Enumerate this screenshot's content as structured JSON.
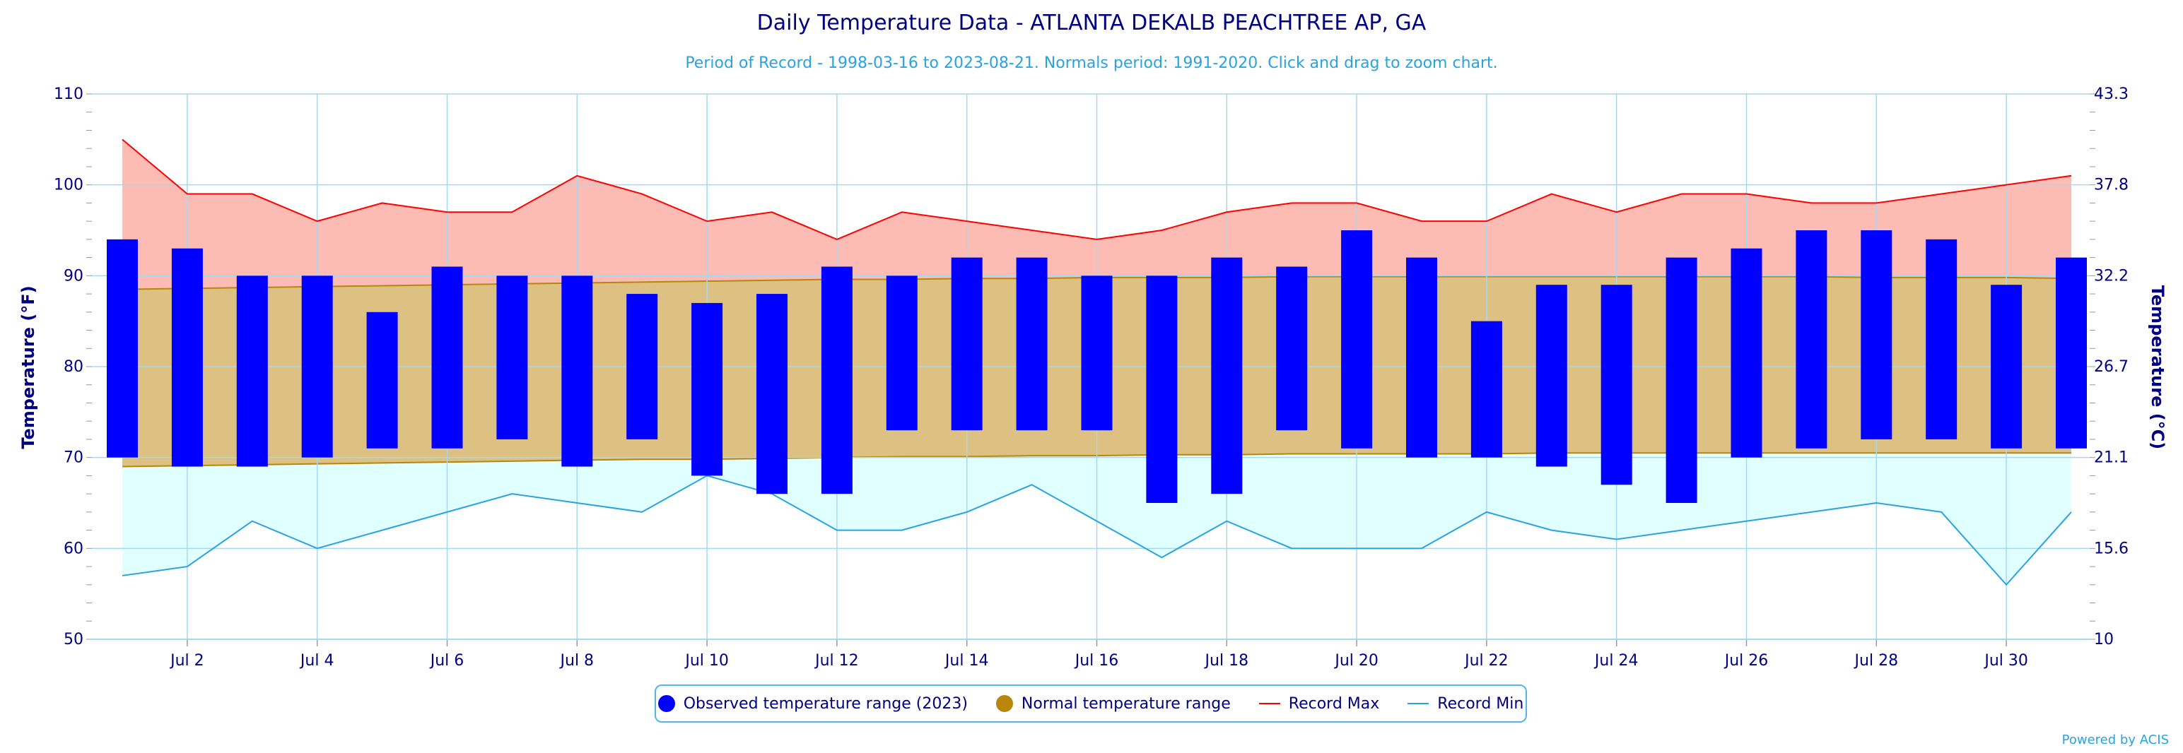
{
  "chart_data": {
    "type": "bar",
    "title": "Daily Temperature Data - ATLANTA DEKALB PEACHTREE AP, GA",
    "subtitle": "Period of Record - 1998-03-16 to 2023-08-21. Normals period: 1991-2020. Click and drag to zoom chart.",
    "ylabel": "Temperature (°F)",
    "y2label": "Temperature (°C)",
    "ylim": [
      50,
      110
    ],
    "y_ticks": [
      "50",
      "60",
      "70",
      "80",
      "90",
      "100",
      "110"
    ],
    "y2_ticks": [
      "10",
      "15.6",
      "21.1",
      "26.7",
      "32.2",
      "37.8",
      "43.3"
    ],
    "x_tick_labels": [
      "Jul 2",
      "Jul 4",
      "Jul 6",
      "Jul 8",
      "Jul 10",
      "Jul 12",
      "Jul 14",
      "Jul 16",
      "Jul 18",
      "Jul 20",
      "Jul 22",
      "Jul 24",
      "Jul 26",
      "Jul 28",
      "Jul 30"
    ],
    "days": [
      1,
      2,
      3,
      4,
      5,
      6,
      7,
      8,
      9,
      10,
      11,
      12,
      13,
      14,
      15,
      16,
      17,
      18,
      19,
      20,
      21,
      22,
      23,
      24,
      25,
      26,
      27,
      28,
      29,
      30,
      31
    ],
    "series": [
      {
        "name": "Observed temperature range (2023)",
        "color": "#0000ff",
        "max": [
          94,
          93,
          90,
          90,
          86,
          91,
          90,
          90,
          88,
          87,
          88,
          91,
          90,
          92,
          92,
          90,
          90,
          92,
          91,
          95,
          92,
          85,
          89,
          89,
          92,
          93,
          95,
          95,
          94,
          89,
          92
        ],
        "min": [
          70,
          69,
          69,
          70,
          71,
          71,
          72,
          69,
          72,
          68,
          66,
          66,
          73,
          73,
          73,
          73,
          65,
          66,
          73,
          71,
          70,
          70,
          69,
          67,
          65,
          70,
          71,
          72,
          72,
          71,
          71
        ]
      },
      {
        "name": "Normal temperature range",
        "color": "#b8860b",
        "max": [
          88.5,
          88.6,
          88.7,
          88.8,
          88.9,
          89.0,
          89.1,
          89.2,
          89.3,
          89.4,
          89.5,
          89.6,
          89.6,
          89.7,
          89.7,
          89.8,
          89.8,
          89.8,
          89.9,
          89.9,
          89.9,
          89.9,
          89.9,
          89.9,
          89.9,
          89.9,
          89.9,
          89.8,
          89.8,
          89.8,
          89.7
        ],
        "min": [
          69.0,
          69.1,
          69.2,
          69.3,
          69.4,
          69.5,
          69.6,
          69.7,
          69.8,
          69.8,
          69.9,
          70.0,
          70.1,
          70.1,
          70.2,
          70.2,
          70.3,
          70.3,
          70.4,
          70.4,
          70.4,
          70.4,
          70.5,
          70.5,
          70.5,
          70.5,
          70.5,
          70.5,
          70.5,
          70.5,
          70.5
        ]
      },
      {
        "name": "Record Max",
        "color": "#ff0000",
        "values": [
          105,
          99,
          99,
          96,
          98,
          97,
          97,
          101,
          99,
          96,
          97,
          94,
          97,
          96,
          95,
          94,
          95,
          97,
          98,
          98,
          96,
          96,
          99,
          97,
          99,
          99,
          98,
          98,
          99,
          100,
          101
        ]
      },
      {
        "name": "Record Min",
        "color": "#29a3e0",
        "values": [
          57,
          58,
          63,
          60,
          62,
          64,
          66,
          65,
          64,
          68,
          66,
          62,
          62,
          64,
          67,
          63,
          59,
          63,
          60,
          60,
          60,
          64,
          62,
          61,
          62,
          63,
          64,
          65,
          64,
          56,
          64
        ]
      }
    ],
    "grid": true,
    "legend_position": "bottom-center"
  },
  "legend": {
    "observed": "Observed temperature range (2023)",
    "normal": "Normal temperature range",
    "record_max": "Record Max",
    "record_min": "Record Min"
  },
  "credits": "Powered by ACIS",
  "colors": {
    "title": "#000080",
    "subtitle": "#29a3e0",
    "observed": "#0000ff",
    "normal_fill": "#dcc183",
    "normal_marker": "#b8860b",
    "record_max_line": "#ff0000",
    "record_max_fill": "#fcbcb4",
    "record_min_line": "#29a3e0",
    "record_min_fill": "#e0ffff",
    "grid": "#a8d8f0"
  }
}
